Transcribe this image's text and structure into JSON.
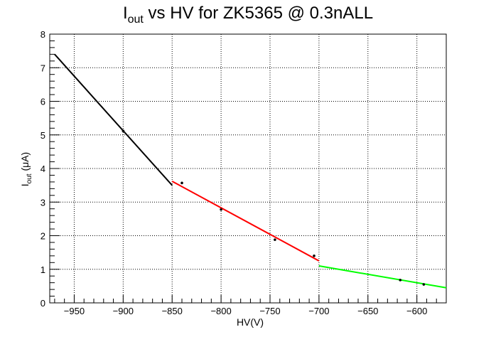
{
  "chart_data": {
    "type": "line",
    "title_main": "I",
    "title_sub": "out",
    "title_rest": " vs HV for ZK5365 @ 0.3nALL",
    "xlabel": "HV(V)",
    "ylabel_main": "I",
    "ylabel_sub": "out",
    "ylabel_rest": " (μA)",
    "xlim": [
      -975,
      -570
    ],
    "ylim": [
      0,
      8
    ],
    "x_ticks": [
      -950,
      -900,
      -850,
      -800,
      -750,
      -700,
      -650,
      -600
    ],
    "x_tick_labels": [
      "−950",
      "−900",
      "−850",
      "−800",
      "−750",
      "−700",
      "−650",
      "−600"
    ],
    "y_ticks": [
      0,
      1,
      2,
      3,
      4,
      5,
      6,
      7,
      8
    ],
    "y_tick_labels": [
      "0",
      "1",
      "2",
      "3",
      "4",
      "5",
      "6",
      "7",
      "8"
    ],
    "grid": true,
    "points": [
      {
        "x": -900,
        "y": 5.12
      },
      {
        "x": -840,
        "y": 3.57
      },
      {
        "x": -800,
        "y": 2.78
      },
      {
        "x": -745,
        "y": 1.88
      },
      {
        "x": -705,
        "y": 1.4
      },
      {
        "x": -617,
        "y": 0.68
      },
      {
        "x": -593,
        "y": 0.55
      }
    ],
    "fits": [
      {
        "color": "#000000",
        "x": [
          -970,
          -850
        ],
        "y": [
          7.4,
          3.5
        ]
      },
      {
        "color": "#ff0000",
        "x": [
          -850,
          -700
        ],
        "y": [
          3.62,
          1.25
        ]
      },
      {
        "color": "#00ff00",
        "x": [
          -700,
          -570
        ],
        "y": [
          1.1,
          0.45
        ]
      }
    ]
  }
}
